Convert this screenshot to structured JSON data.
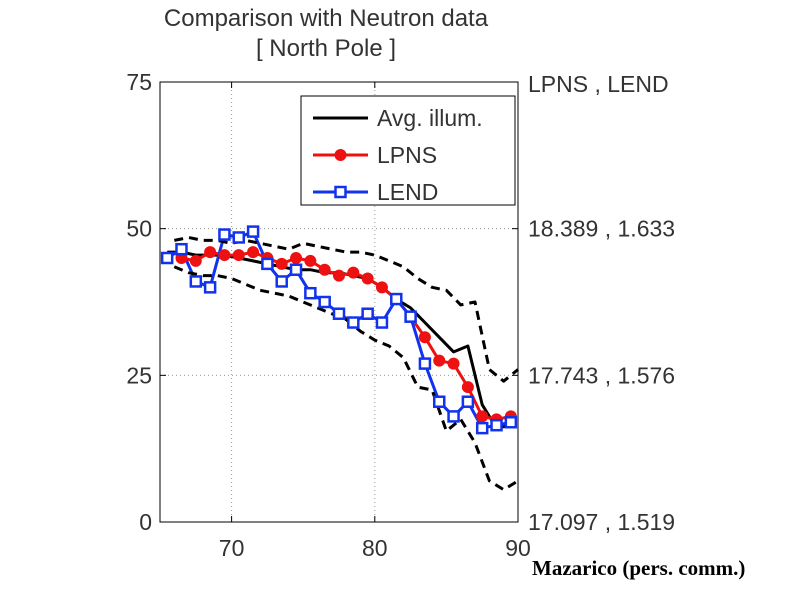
{
  "chart_data": {
    "type": "line",
    "title": "Comparison with Neutron data",
    "subtitle": "[ North Pole ]",
    "xlabel": "",
    "ylabel": "",
    "xlim": [
      65,
      90
    ],
    "ylim": [
      0,
      75
    ],
    "x_ticks": [
      "70",
      "80",
      "90"
    ],
    "y_ticks": [
      "0",
      "25",
      "50",
      "75"
    ],
    "right_axis_title": "LPNS , LEND",
    "right_ticks": [
      {
        "y": 50,
        "label": "18.389 , 1.633"
      },
      {
        "y": 25,
        "label": "17.743 , 1.576"
      },
      {
        "y": 0,
        "label": "17.097 , 1.519"
      }
    ],
    "grid": true,
    "legend_position": "top-right",
    "series": [
      {
        "name": "Avg. illum.",
        "color": "#000000",
        "marker": "none",
        "x": [
          65.5,
          66.5,
          67.5,
          68.5,
          69.5,
          70.5,
          71.5,
          72.5,
          73.5,
          74.5,
          75.5,
          76.5,
          77.5,
          78.5,
          79.5,
          80.5,
          81.5,
          82.5,
          83.5,
          84.5,
          85.5,
          86.5,
          87.5,
          88.5,
          89.5
        ],
        "y": [
          46,
          46,
          45.5,
          45.5,
          45.5,
          45,
          44.5,
          44,
          43.5,
          43,
          43,
          42.5,
          42.5,
          42,
          41.5,
          40,
          38,
          36.5,
          34,
          31.5,
          29,
          30,
          20,
          16,
          16.5
        ]
      },
      {
        "name": "LPNS",
        "color": "#ee1111",
        "marker": "circle",
        "x": [
          66.5,
          67.5,
          68.5,
          69.5,
          70.5,
          71.5,
          72.5,
          73.5,
          74.5,
          75.5,
          76.5,
          77.5,
          78.5,
          79.5,
          80.5,
          81.5,
          82.5,
          83.5,
          84.5,
          85.5,
          86.5,
          87.5,
          88.5,
          89.5
        ],
        "y": [
          45,
          44.5,
          46,
          45.5,
          45.5,
          46,
          45,
          44,
          45,
          44.5,
          43,
          42,
          42.5,
          41.5,
          40,
          38,
          35,
          31.5,
          27.5,
          27,
          23,
          18,
          17.5,
          18
        ]
      },
      {
        "name": "LEND",
        "color": "#1133ee",
        "marker": "square",
        "x": [
          65.5,
          66.5,
          67.5,
          68.5,
          69.5,
          70.5,
          71.5,
          72.5,
          73.5,
          74.5,
          75.5,
          76.5,
          77.5,
          78.5,
          79.5,
          80.5,
          81.5,
          82.5,
          83.5,
          84.5,
          85.5,
          86.5,
          87.5,
          88.5,
          89.5
        ],
        "y": [
          45,
          46.5,
          41,
          40,
          49,
          48.5,
          49.5,
          44,
          41,
          43,
          39,
          37.5,
          35.5,
          34,
          35.5,
          34,
          38,
          35,
          27,
          20.5,
          18,
          20.5,
          16,
          16.5,
          17
        ]
      },
      {
        "name": "",
        "color": "#000000",
        "marker": "none",
        "dash": true,
        "x": [
          66,
          67,
          68,
          69,
          70,
          71,
          72,
          73,
          74,
          75,
          76,
          77,
          78,
          79,
          80,
          81,
          82,
          83,
          84,
          85,
          86,
          87,
          88,
          89,
          90
        ],
        "y": [
          48,
          48.5,
          48,
          48,
          47.5,
          48,
          47.5,
          47,
          46.5,
          47.5,
          47,
          46.5,
          46,
          46,
          45.5,
          44.5,
          43.5,
          41.5,
          40,
          39.5,
          37,
          37.5,
          26,
          24,
          26
        ]
      },
      {
        "name": "",
        "color": "#000000",
        "marker": "none",
        "dash": true,
        "x": [
          66,
          67,
          68,
          69,
          70,
          71,
          72,
          73,
          74,
          75,
          76,
          77,
          78,
          79,
          80,
          81,
          82,
          83,
          84,
          85,
          86,
          87,
          88,
          89,
          90
        ],
        "y": [
          43.5,
          42.5,
          42,
          42,
          41.5,
          40.5,
          39.5,
          39,
          38.5,
          37.5,
          36.5,
          35.5,
          34.5,
          32.5,
          31,
          30,
          28,
          23,
          22.5,
          15.5,
          17.5,
          13.5,
          7,
          5.5,
          7
        ]
      }
    ]
  },
  "credit": "Mazarico (pers. comm.)"
}
